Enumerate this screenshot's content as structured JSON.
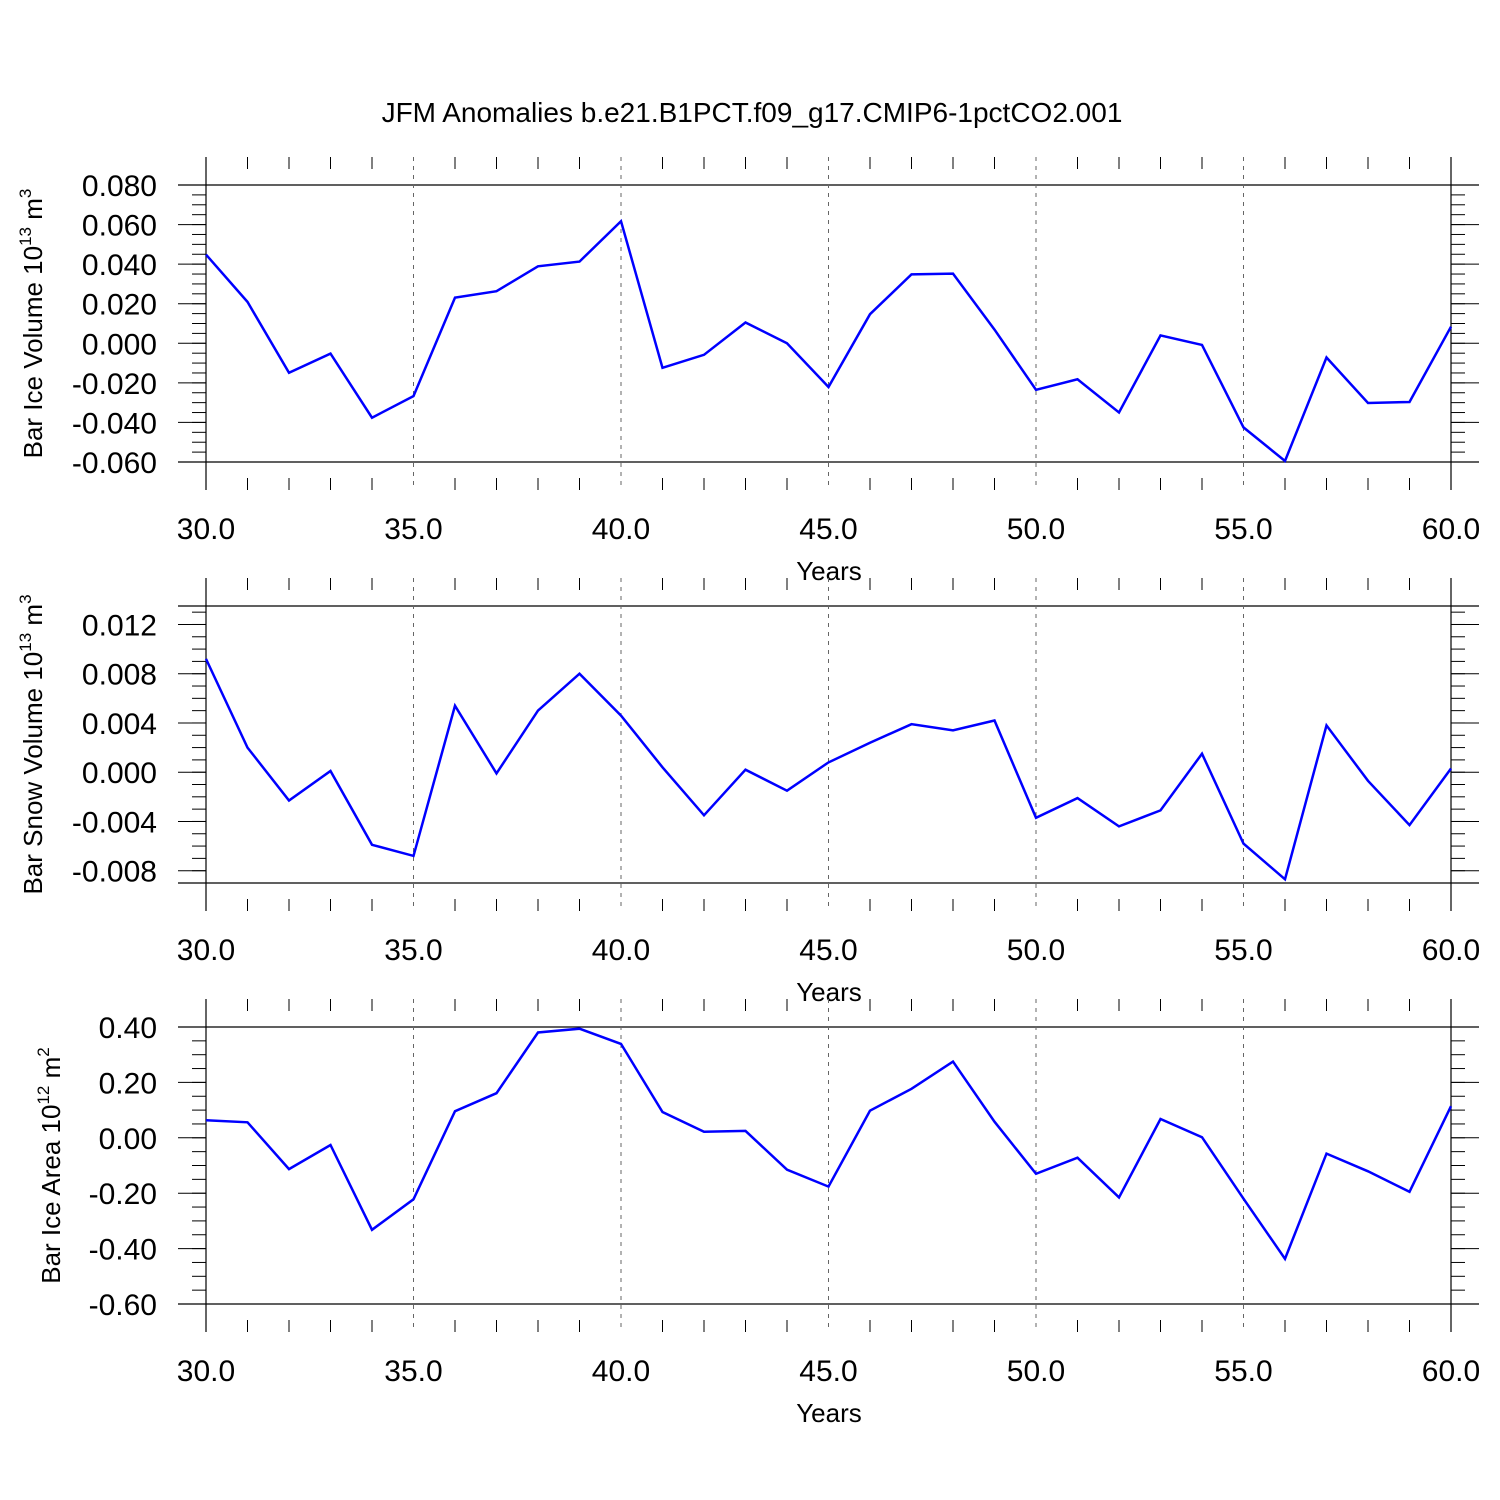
{
  "title": "JFM Anomalies b.e21.B1PCT.f09_g17.CMIP6-1pctCO2.001",
  "colors": {
    "series": "#0000ff",
    "axes": "#000000",
    "grid": "#666666"
  },
  "chart_data": [
    {
      "type": "line",
      "ylabel": "Bar Ice Volume 10",
      "ylabel_exp": "13",
      "ylabel_unit": " m",
      "ylabel_unit_exp": "3",
      "xlabel": "Years",
      "xlim": [
        30,
        60
      ],
      "ylim": [
        -0.06,
        0.08
      ],
      "x_ticks": [
        "30.0",
        "35.0",
        "40.0",
        "45.0",
        "50.0",
        "55.0",
        "60.0"
      ],
      "y_ticks": [
        {
          "v": 0.08,
          "label": "0.080"
        },
        {
          "v": 0.06,
          "label": "0.060"
        },
        {
          "v": 0.04,
          "label": "0.040"
        },
        {
          "v": 0.02,
          "label": "0.020"
        },
        {
          "v": 0.0,
          "label": "0.000"
        },
        {
          "v": -0.02,
          "label": "-0.020"
        },
        {
          "v": -0.04,
          "label": "-0.040"
        },
        {
          "v": -0.06,
          "label": "-0.060"
        }
      ],
      "y_minor_step": 0.005,
      "grid": "vertical dashed at major x ticks",
      "x": [
        30,
        31,
        32,
        33,
        34,
        35,
        36,
        37,
        38,
        39,
        40,
        41,
        42,
        43,
        44,
        45,
        46,
        47,
        48,
        49,
        50,
        51,
        52,
        53,
        54,
        55,
        56,
        57,
        58,
        59,
        60
      ],
      "values": [
        0.0448,
        0.0209,
        -0.0149,
        -0.0052,
        -0.0376,
        -0.0267,
        0.0231,
        0.0263,
        0.0389,
        0.0413,
        0.0617,
        -0.0124,
        -0.0058,
        0.0105,
        0.0,
        -0.0221,
        0.0147,
        0.0348,
        0.0352,
        0.0069,
        -0.0235,
        -0.0182,
        -0.035,
        0.004,
        -0.0008,
        -0.0425,
        -0.0595,
        -0.0072,
        -0.0302,
        -0.0297,
        0.0084
      ]
    },
    {
      "type": "line",
      "ylabel": "Bar Snow Volume 10",
      "ylabel_exp": "13",
      "ylabel_unit": " m",
      "ylabel_unit_exp": "3",
      "xlabel": "Years",
      "xlim": [
        30,
        60
      ],
      "ylim": [
        -0.009,
        0.0135
      ],
      "x_ticks": [
        "30.0",
        "35.0",
        "40.0",
        "45.0",
        "50.0",
        "55.0",
        "60.0"
      ],
      "y_ticks": [
        {
          "v": 0.012,
          "label": "0.012"
        },
        {
          "v": 0.008,
          "label": "0.008"
        },
        {
          "v": 0.004,
          "label": "0.004"
        },
        {
          "v": 0.0,
          "label": "0.000"
        },
        {
          "v": -0.004,
          "label": "-0.004"
        },
        {
          "v": -0.008,
          "label": "-0.008"
        }
      ],
      "y_minor_step": 0.001,
      "grid": "vertical dashed at major x ticks",
      "x": [
        30,
        31,
        32,
        33,
        34,
        35,
        36,
        37,
        38,
        39,
        40,
        41,
        42,
        43,
        44,
        45,
        46,
        47,
        48,
        49,
        50,
        51,
        52,
        53,
        54,
        55,
        56,
        57,
        58,
        59,
        60
      ],
      "values": [
        0.0092,
        0.002,
        -0.0023,
        0.0001,
        -0.0059,
        -0.0068,
        0.0054,
        -0.0001,
        0.005,
        0.008,
        0.0046,
        0.0004,
        -0.0035,
        0.0002,
        -0.0015,
        0.0008,
        0.0024,
        0.0039,
        0.0034,
        0.0042,
        -0.0037,
        -0.0021,
        -0.0044,
        -0.0031,
        0.0015,
        -0.0058,
        -0.0087,
        0.0038,
        -0.0007,
        -0.0043,
        0.0003
      ]
    },
    {
      "type": "line",
      "ylabel": "Bar Ice Area 10",
      "ylabel_exp": "12",
      "ylabel_unit": " m",
      "ylabel_unit_exp": "2",
      "xlabel": "Years",
      "xlim": [
        30,
        60
      ],
      "ylim": [
        -0.6,
        0.4
      ],
      "x_ticks": [
        "30.0",
        "35.0",
        "40.0",
        "45.0",
        "50.0",
        "55.0",
        "60.0"
      ],
      "y_ticks": [
        {
          "v": 0.4,
          "label": "0.40"
        },
        {
          "v": 0.2,
          "label": "0.20"
        },
        {
          "v": 0.0,
          "label": "0.00"
        },
        {
          "v": -0.2,
          "label": "-0.20"
        },
        {
          "v": -0.4,
          "label": "-0.40"
        },
        {
          "v": -0.6,
          "label": "-0.60"
        }
      ],
      "y_minor_step": 0.05,
      "grid": "vertical dashed at major x ticks",
      "x": [
        30,
        31,
        32,
        33,
        34,
        35,
        36,
        37,
        38,
        39,
        40,
        41,
        42,
        43,
        44,
        45,
        46,
        47,
        48,
        49,
        50,
        51,
        52,
        53,
        54,
        55,
        56,
        57,
        58,
        59,
        60
      ],
      "values": [
        0.063,
        0.056,
        -0.113,
        -0.026,
        -0.332,
        -0.222,
        0.096,
        0.161,
        0.38,
        0.394,
        0.339,
        0.093,
        0.022,
        0.025,
        -0.115,
        -0.176,
        0.098,
        0.177,
        0.275,
        0.058,
        -0.13,
        -0.072,
        -0.215,
        0.068,
        0.002,
        -0.22,
        -0.437,
        -0.057,
        -0.121,
        -0.195,
        0.114
      ]
    }
  ]
}
